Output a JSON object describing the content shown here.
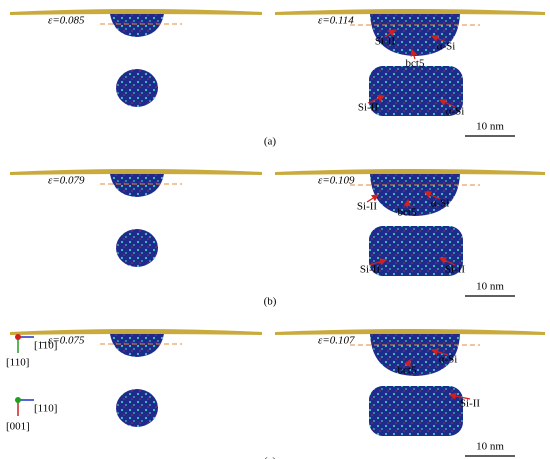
{
  "panels": [
    {
      "strain_left": "ε=0.085",
      "strain_right": "ε=0.114",
      "labels": [
        "Si-II",
        "α-Si",
        "bct5",
        "Si-II",
        "α-Si"
      ],
      "scale_bar": "10 nm",
      "caption": "(a)"
    },
    {
      "strain_left": "ε=0.079",
      "strain_right": "ε=0.109",
      "labels": [
        "Si-II",
        "bct5",
        "α-Si",
        "Si-II",
        "Si-II"
      ],
      "scale_bar": "10 nm",
      "caption": "(b)"
    },
    {
      "strain_left": "ε=0.075",
      "strain_right": "ε=0.107",
      "labels": [
        "α-Si",
        "bct5",
        "Si-II"
      ],
      "scale_bar": "10 nm",
      "caption": "(c)",
      "axes": [
        "[1̄10]",
        "[110]",
        "[110]",
        "[001]"
      ]
    }
  ]
}
